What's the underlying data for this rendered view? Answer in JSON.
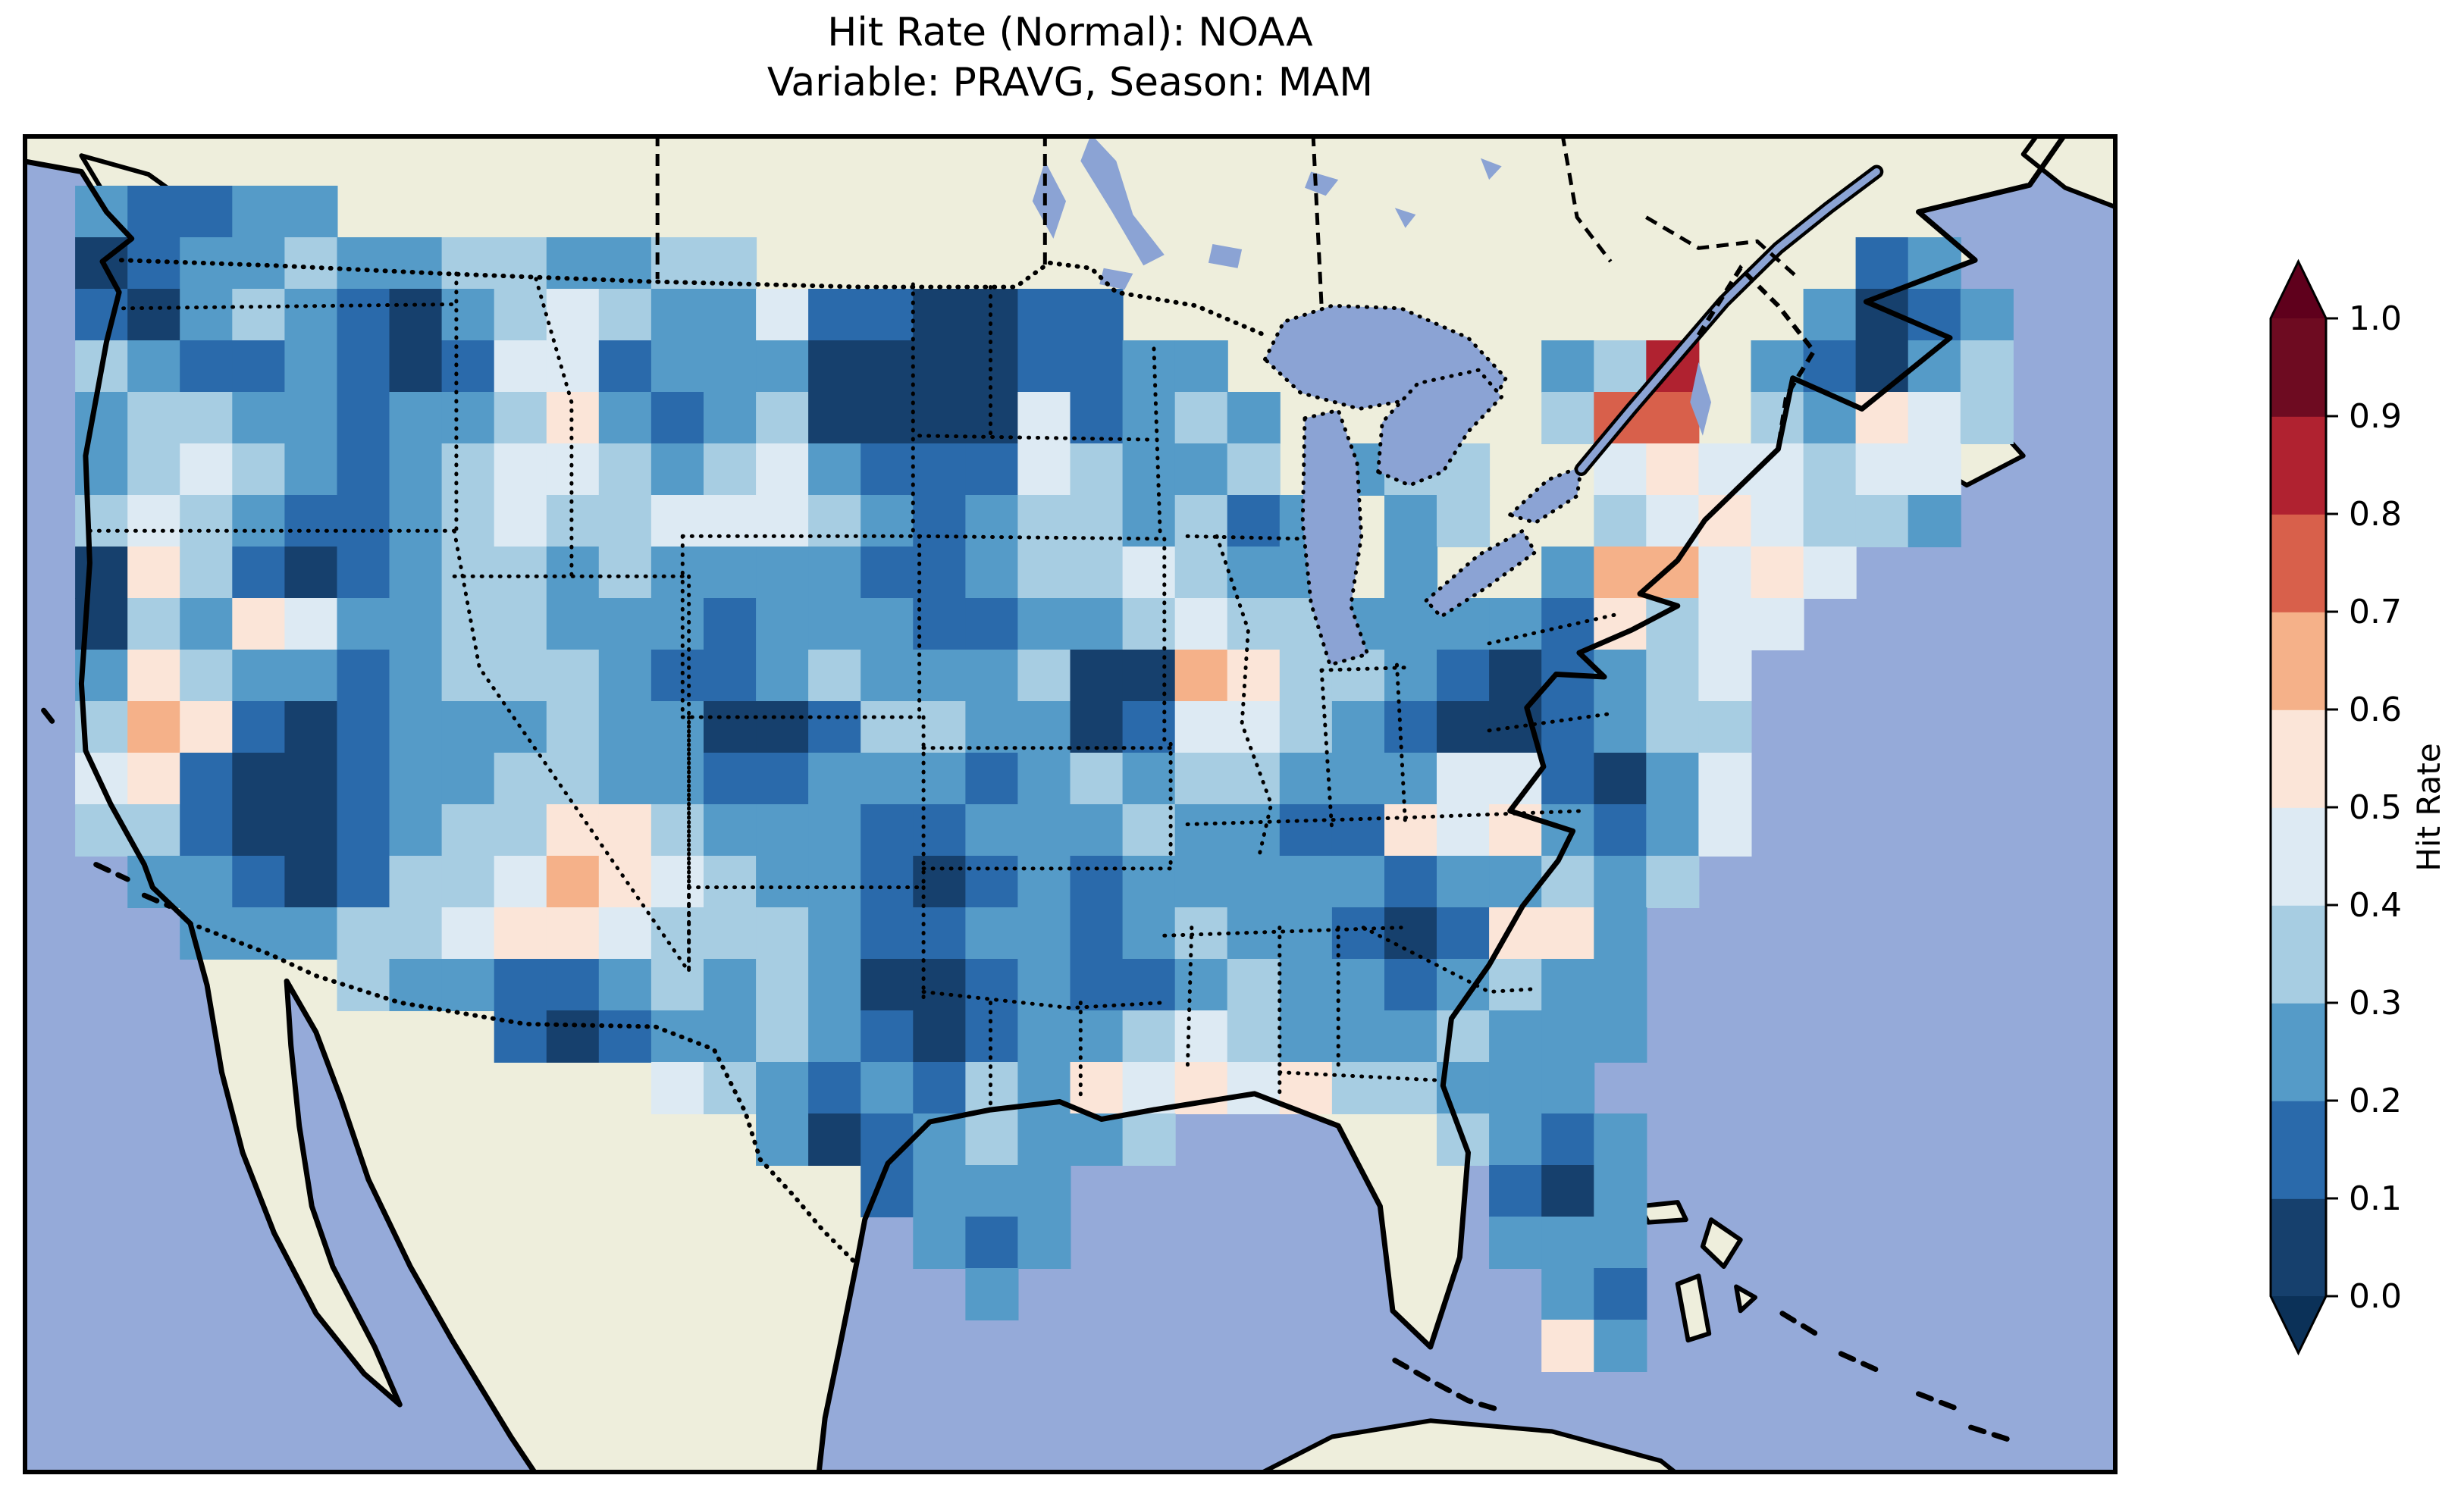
{
  "title": {
    "line1": "Hit Rate (Normal): NOAA",
    "line2": "Variable: PRAVG, Season: MAM"
  },
  "colorbar": {
    "label": "Hit Rate",
    "tick_labels": [
      "0.0",
      "0.1",
      "0.2",
      "0.3",
      "0.4",
      "0.5",
      "0.6",
      "0.7",
      "0.8",
      "0.9",
      "1.0"
    ],
    "bin_colors": [
      "#16406d",
      "#2a6aab",
      "#559bc8",
      "#a7cde2",
      "#ddeaf3",
      "#fbe5d8",
      "#f5b189",
      "#d8604b",
      "#b02230",
      "#6e0b21"
    ],
    "under_color": "#0b3158",
    "over_color": "#5f001c"
  },
  "map_colors": {
    "ocean": "#95aad9",
    "land": "#eeeedc",
    "lake": "#8ba3d4",
    "coastline": "#000000",
    "border": "#000000"
  },
  "chart_data": {
    "type": "heatmap",
    "title": "Hit Rate (Normal): NOAA",
    "subtitle": "Variable: PRAVG, Season: MAM",
    "source": "NOAA",
    "variable": "PRAVG",
    "season": "MAM",
    "colorbar_label": "Hit Rate",
    "value_range": [
      0.0,
      1.0
    ],
    "bin_edges": [
      0.0,
      0.1,
      0.2,
      0.3,
      0.4,
      0.5,
      0.6,
      0.7,
      0.8,
      0.9,
      1.0
    ],
    "colorbar_extend": "both",
    "legend_position": "right",
    "region": "Continental United States",
    "grid": {
      "cols": 40,
      "rows": 26,
      "cell_encoding": "digit d = hit-rate bin [d/10,(d+1)/10]; '.' = no data (outside US)",
      "rows_data": [
        "........................................",
        ".21122..................................",
        ".0122322332233.....................12...",
        ".10232102343224110011.............2012..",
        ".3211210144122200001122......238.21023..",
        ".23322122352123000041232.....377.32543..",
        ".23432123443234211143223.233..4544344...",
        ".343211234334443212332312.23..3454332...",
        ".053101233232222112334322.2..266454.....",
        ".032542233222122211223433222215344......",
        ".25322123332112322230065332101234.......",
        ".36510122232200133220144321001233.......",
        ".45100122332211222123233222441024.......",
        ".33100123355322211222322115452124.......",
        "..221013346543221012122222122323........",
        "...2223345543332112212322101552.........",
        "......3221123232001211232212322.........",
        ".........1012232101223432223222.........",
        "............432121325454533222..........",
        "..............20123223.....3212.........",
        "................1222........102.........",
        ".................212........222.........",
        "..................2..........21.........",
        ".............................52.........",
        "........................................",
        "........................................"
      ]
    }
  }
}
